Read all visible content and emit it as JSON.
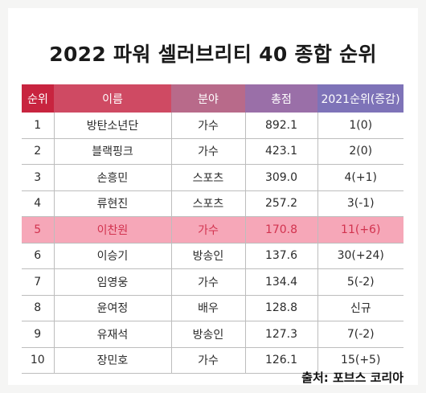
{
  "title": "2022 파워 셀러브리티 40 종합 순위",
  "table": {
    "headers": [
      "순위",
      "이름",
      "분야",
      "총점",
      "2021순위(증감)"
    ],
    "header_colors": [
      "#c8243f",
      "#cf4a63",
      "#b86a8a",
      "#9a6fa8",
      "#7e73b8"
    ],
    "highlight_color": "#f6a7b8",
    "rows": [
      {
        "rank": "1",
        "name": "방탄소년단",
        "field": "가수",
        "total": "892.1",
        "change": "1(0)"
      },
      {
        "rank": "2",
        "name": "블랙핑크",
        "field": "가수",
        "total": "423.1",
        "change": "2(0)"
      },
      {
        "rank": "3",
        "name": "손흥민",
        "field": "스포츠",
        "total": "309.0",
        "change": "4(+1)"
      },
      {
        "rank": "4",
        "name": "류현진",
        "field": "스포츠",
        "total": "257.2",
        "change": "3(-1)"
      },
      {
        "rank": "5",
        "name": "이찬원",
        "field": "가수",
        "total": "170.8",
        "change": "11(+6)"
      },
      {
        "rank": "6",
        "name": "이승기",
        "field": "방송인",
        "total": "137.6",
        "change": "30(+24)"
      },
      {
        "rank": "7",
        "name": "임영웅",
        "field": "가수",
        "total": "134.4",
        "change": "5(-2)"
      },
      {
        "rank": "8",
        "name": "윤여정",
        "field": "배우",
        "total": "128.8",
        "change": "신규"
      },
      {
        "rank": "9",
        "name": "유재석",
        "field": "방송인",
        "total": "127.3",
        "change": "7(-2)"
      },
      {
        "rank": "10",
        "name": "장민호",
        "field": "가수",
        "total": "126.1",
        "change": "15(+5)"
      }
    ]
  },
  "source": "출처: 포브스 코리아"
}
